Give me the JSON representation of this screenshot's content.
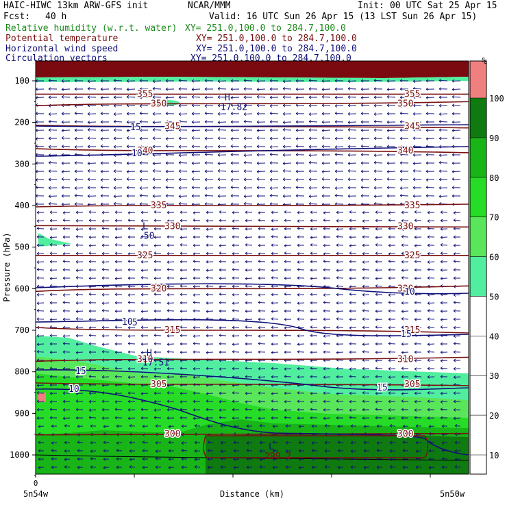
{
  "header": {
    "model": "HAIC-HIWC 13km ARW-GFS init",
    "org": "NCAR/MMM",
    "init": "Init: 00 UTC Sat 25 Apr 15",
    "fcst_label": "Fcst:",
    "fcst_value": "40 h",
    "valid": "Valid: 16 UTC Sun 26 Apr 15 (13 LST Sun 26 Apr 15)",
    "fields": [
      {
        "name": "Relative humidity (w.r.t. water)",
        "xy": "XY= 251.0,100.0 to 284.7,100.0",
        "color": "#1a8a1a"
      },
      {
        "name": "Potential temperature",
        "xy": "XY= 251.0,100.0 to 284.7,100.0",
        "color": "#7a1010"
      },
      {
        "name": "Horizontal wind speed",
        "xy": "XY= 251.0,100.0 to 284.7,100.0",
        "color": "#101078"
      },
      {
        "name": "Circulation vectors",
        "xy": "XY= 251.0,100.0 to 284.7,100.0",
        "color": "#101078"
      }
    ]
  },
  "chart_data": {
    "type": "contour",
    "ylabel": "Pressure (hPa)",
    "xlabel": "Distance (km)",
    "x_tick_labels": [
      "0"
    ],
    "x_endpoints": [
      "5n54w",
      "5n50w"
    ],
    "y_ticks": [
      100,
      200,
      300,
      400,
      500,
      600,
      700,
      800,
      900,
      1000
    ],
    "ylim": [
      1050,
      50
    ],
    "colorbar": {
      "unit": "%",
      "levels": [
        10,
        20,
        30,
        40,
        50,
        60,
        70,
        80,
        90,
        100
      ],
      "fills": [
        {
          "from": 50,
          "to": 60,
          "color": "#52eea0"
        },
        {
          "from": 60,
          "to": 70,
          "color": "#5ae65a"
        },
        {
          "from": 70,
          "to": 80,
          "color": "#26dc26"
        },
        {
          "from": 80,
          "to": 90,
          "color": "#18b418"
        },
        {
          "from": 90,
          "to": 100,
          "color": "#0f7a0f"
        },
        {
          "from": 100,
          "to": 110,
          "color": "#f08080"
        }
      ]
    },
    "theta_contours": [
      {
        "label": "355",
        "p": 132
      },
      {
        "label": "350",
        "p": 155
      },
      {
        "label": "345",
        "p": 210
      },
      {
        "label": "340",
        "p": 268
      },
      {
        "label": "335",
        "p": 400
      },
      {
        "label": "330",
        "p": 450
      },
      {
        "label": "325",
        "p": 520
      },
      {
        "label": "320",
        "p": 600
      },
      {
        "label": "315",
        "p": 700
      },
      {
        "label": "310",
        "p": 770
      },
      {
        "label": "305",
        "p": 830
      },
      {
        "label": "300",
        "p": 950
      }
    ],
    "wind_contour_labels": [
      "15",
      "10",
      "15",
      "10",
      "15",
      "10",
      "15",
      "10",
      "15"
    ],
    "annotations": [
      {
        "label": "H",
        "value": "17.82",
        "p": 160
      },
      {
        "label": "L",
        "value": ".50",
        "p": 470
      },
      {
        "label": "H",
        "value": "17.51",
        "p": 775
      },
      {
        "label": "L",
        "value": "299.2",
        "p": 1000
      }
    ]
  }
}
